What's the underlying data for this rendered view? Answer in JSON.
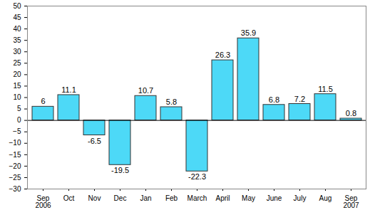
{
  "chart_data": {
    "type": "bar",
    "categories": [
      "Sep\n2006",
      "Oct",
      "Nov",
      "Dec",
      "Jan",
      "Feb",
      "March",
      "April",
      "May",
      "June",
      "July",
      "Aug",
      "Sep\n2007"
    ],
    "values": [
      6,
      11.1,
      -6.5,
      -19.5,
      10.7,
      5.8,
      -22.3,
      26.3,
      35.9,
      6.8,
      7.2,
      11.5,
      0.8
    ],
    "color": "#4dd9f7",
    "ylim": [
      -30,
      50
    ],
    "yticks": [
      -30,
      -25,
      -20,
      -15,
      -10,
      -5,
      0,
      5,
      10,
      15,
      20,
      25,
      30,
      35,
      40,
      45,
      50
    ],
    "grid": false,
    "data_labels": true
  }
}
